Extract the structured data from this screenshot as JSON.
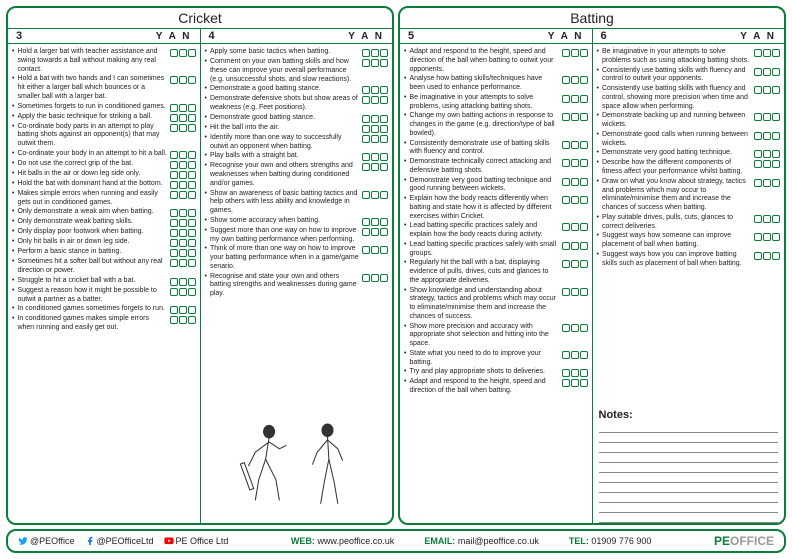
{
  "colors": {
    "brand": "#0a7d3b",
    "text": "#222",
    "line": "#888"
  },
  "panels": [
    {
      "title": "Cricket",
      "columns": [
        {
          "num": "3",
          "yan": "Y  A  N",
          "items": [
            "Hold a larger bat with teacher assistance and swing towards a ball without making any real contact.",
            "Hold a bat with two hands and I can sometimes hit either a larger ball which bounces or a smaller ball with a larger bat.",
            "Sometimes forgets to run in conditioned games.",
            "Apply the basic technique for striking a ball.",
            "Co-ordinate body parts in an attempt to play batting shots against an opponent(s) that may outwit them.",
            "Co-ordinate your body in an attempt to hit a ball.",
            "Do not use the correct grip of the bat.",
            "Hit balls in the air or down leg side only.",
            "Hold the bat with dominant hand at the bottom.",
            "Makes simple errors when running and easily gets out in conditioned games.",
            "Only demonstrate a weak aim when batting.",
            "Only demonstrate weak batting skills.",
            "Only display poor footwork when batting.",
            "Only hit balls in air or down leg side.",
            "Perform a basic stance in batting.",
            "Sometimes hit a softer ball but without any real direction or power.",
            "Struggle to hit a cricket ball with a bat.",
            "Suggest a reason how it might be possible to outwit a partner as a batter.",
            "In conditioned games sometimes forgets to run.",
            "In conditioned games makes simple errors when running and easily get out."
          ]
        },
        {
          "num": "4",
          "yan": "Y  A  N",
          "items": [
            "Apply some basic tactics when batting.",
            "Comment on your own batting skills and how these can improve your overall performance (e.g. unsuccessful shots, and slow reactions).",
            "Demonstrate a good batting stance.",
            "Demonstrate defensive shots but show areas of weakness (e.g. Feet positions).",
            "Demonstrate good batting stance.",
            "Hit the ball into the air.",
            "Identify more than one way to successfully outwit an opponent when batting.",
            "Play balls with a straight bat.",
            "Recognise your own and others strengths and weaknesses when batting during conditioned and/or games.",
            "Show an awareness of basic batting tactics and help others with less ability and knowledge in games.",
            "Show some accuracy when batting.",
            "Suggest more than one way on how to improve my own batting performance when performing.",
            "Think of more than one way on how to improve your batting performance when in a game/game senario.",
            "Recognise and state your own and others batting strengths and weaknesses during game play."
          ],
          "illustration": true
        }
      ]
    },
    {
      "title": "Batting",
      "columns": [
        {
          "num": "5",
          "yan": "Y  A  N",
          "items": [
            "Adapt and respond to the height, speed and direction of the ball when batting to outwit your opponents.",
            "Analyse how batting skills/techniques have been used to enhance performance.",
            "Be imaginative in your attempts to solve problems, using attacking batting shots.",
            "Change my own batting actions in response to changes in the game (e.g. direction/type of ball bowled).",
            "Consistently demonstrate use of batting skills with fluency and control.",
            "Demonstrate technically correct attacking and defensive batting shots.",
            "Demonstrate very good batting technique and good running between wickets.",
            "Explain how the body reacts differently when batting and state how it is affected by different exercises within Cricket.",
            "Lead batting specific practices safely and explain how the body reacts during activity.",
            "Lead batting specific practices safely with small groups.",
            "Regularly hit the ball with a bat, displaying evidence of pulls, drives, cuts and glances to the appropriate deliveries.",
            "Show knowledge and understanding about strategy, tactics and problems which may occur to eliminate/minimise them and increase the chances of success.",
            "Show more precision and accuracy with appropriate shot selection and hitting into the space.",
            "State what you need to do to improve your batting.",
            "Try and play appropriate shots to deliveries.",
            "Adapt and respond to the height, speed and direction of the ball when batting."
          ]
        },
        {
          "num": "6",
          "yan": "Y  A  N",
          "items": [
            "Be imaginative in your attempts to solve problems such as using attacking batting shots.",
            "Consistently use batting skills with fluency and control to outwit your opponents.",
            "Consistently use batting skills with fluency and control, showing more precision when time and space allow when performing.",
            "Demonstrate backing up and running between wickets.",
            "Demonstrate good calls when running between wickets.",
            "Demonstrate very good batting technique.",
            "Describe how the different components of fitness affect your performance whilst batting.",
            "Draw on what you know about strategy, tactics and problems which may occur to eliminate/minimise them and increase the chances of success when batting.",
            "Play suitable drives, pulls, cuts, glances to correct deliveries.",
            "Suggest ways how someone can improve placement of ball when batting.",
            "Suggest ways how you can improve batting skills such as placement of ball when batting."
          ],
          "notes": {
            "title": "Notes:",
            "lines": 10
          }
        }
      ]
    }
  ],
  "footer": {
    "twitter": "@PEOffice",
    "facebook": "@PEOfficeLtd",
    "youtube": "PE Office Ltd",
    "web_label": "WEB:",
    "web": "www.peoffice.co.uk",
    "email_label": "EMAIL:",
    "email": "mail@peoffice.co.uk",
    "tel_label": "TEL:",
    "tel": "01909 776 900",
    "logo_pe": "PE",
    "logo_office": "OFFICE"
  }
}
